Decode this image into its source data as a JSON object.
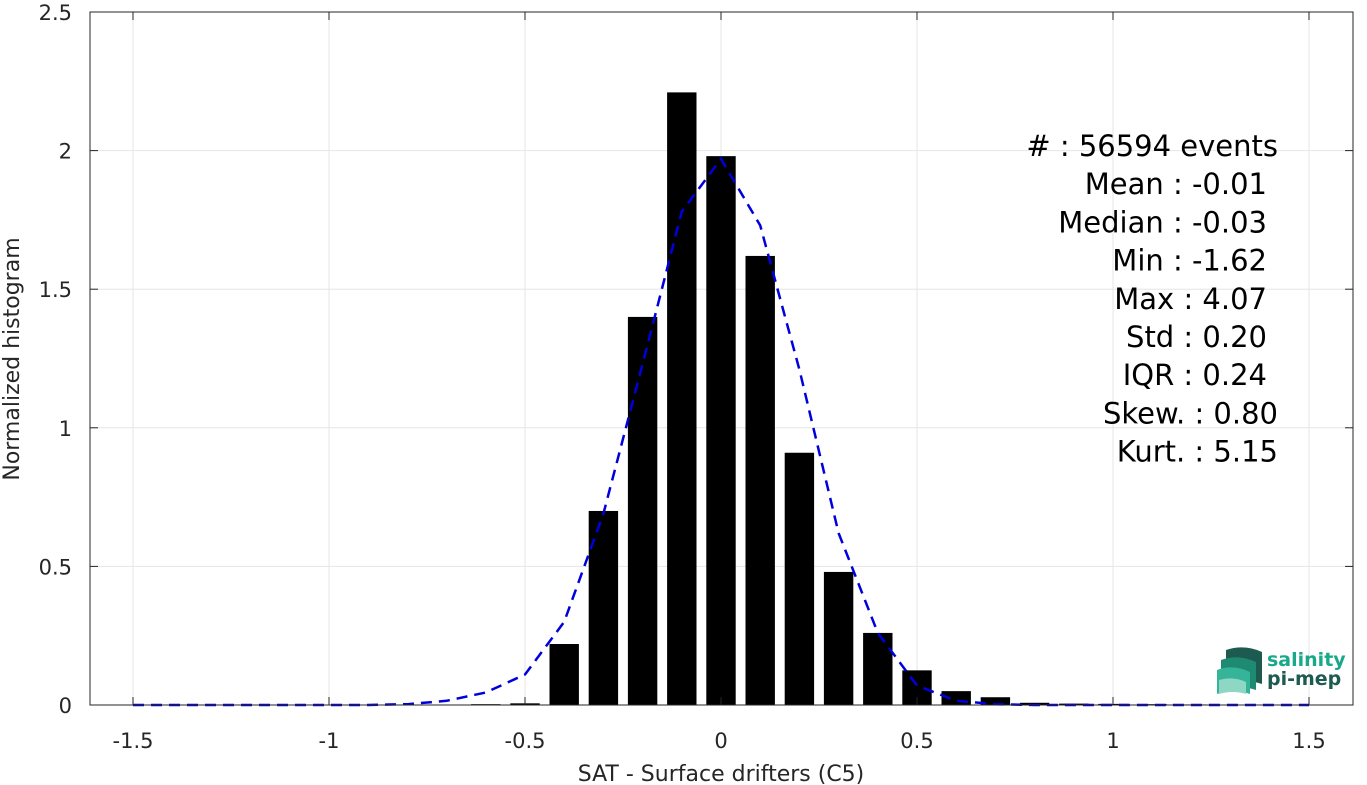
{
  "chart_data": {
    "type": "bar",
    "xlabel": "SAT - Surface drifters (C5)",
    "ylabel": "Normalized histogram",
    "xlim": [
      -1.62,
      1.62
    ],
    "ylim": [
      0,
      2.5
    ],
    "grid": true,
    "x_ticks": [
      -1.5,
      -1,
      -0.5,
      0,
      0.5,
      1,
      1.5
    ],
    "x_tick_labels": [
      "-1.5",
      "-1",
      "-0.5",
      "0",
      "0.5",
      "1",
      "1.5"
    ],
    "y_ticks": [
      0,
      0.5,
      1,
      1.5,
      2,
      2.5
    ],
    "y_tick_labels": [
      "0",
      "0.5",
      "1",
      "1.5",
      "2",
      "2.5"
    ],
    "bar_width": 0.075,
    "bars": {
      "x": [
        -0.6,
        -0.5,
        -0.4,
        -0.3,
        -0.2,
        -0.1,
        0.0,
        0.1,
        0.2,
        0.3,
        0.4,
        0.5,
        0.6,
        0.7,
        0.8,
        0.9,
        1.0,
        1.1,
        1.2
      ],
      "values": [
        0.003,
        0.006,
        0.22,
        0.7,
        1.4,
        2.21,
        1.98,
        1.62,
        0.91,
        0.48,
        0.26,
        0.125,
        0.05,
        0.028,
        0.008,
        0.005,
        0.004,
        0.003,
        0.002
      ],
      "color": "#000000"
    },
    "fit_line": {
      "style": "dashed",
      "color": "#0000dd",
      "x": [
        -1.5,
        -1.4,
        -1.3,
        -1.2,
        -1.1,
        -1.0,
        -0.9,
        -0.8,
        -0.7,
        -0.6,
        -0.5,
        -0.4,
        -0.3,
        -0.2,
        -0.1,
        0.0,
        0.1,
        0.2,
        0.3,
        0.4,
        0.5,
        0.6,
        0.7,
        0.8,
        0.9,
        1.0,
        1.1,
        1.2,
        1.3,
        1.4,
        1.5
      ],
      "y": [
        0,
        0,
        0,
        0,
        0,
        0,
        0,
        0.003,
        0.015,
        0.045,
        0.11,
        0.3,
        0.69,
        1.23,
        1.78,
        1.97,
        1.73,
        1.21,
        0.62,
        0.26,
        0.07,
        0.015,
        0.003,
        0,
        0,
        0,
        0,
        0,
        0,
        0,
        0
      ]
    },
    "stats": [
      "#  : 56594 events",
      "Mean : -0.01",
      "Median : -0.03",
      "Min : -1.62",
      "Max : 4.07",
      "Std : 0.20",
      "IQR : 0.24",
      "Skew. : 0.80",
      "Kurt. : 5.15"
    ]
  },
  "logo": {
    "line1": "salinity",
    "line2": "pi-mep",
    "color_teal": "#1aa88a",
    "color_dark": "#1d5a4f"
  }
}
